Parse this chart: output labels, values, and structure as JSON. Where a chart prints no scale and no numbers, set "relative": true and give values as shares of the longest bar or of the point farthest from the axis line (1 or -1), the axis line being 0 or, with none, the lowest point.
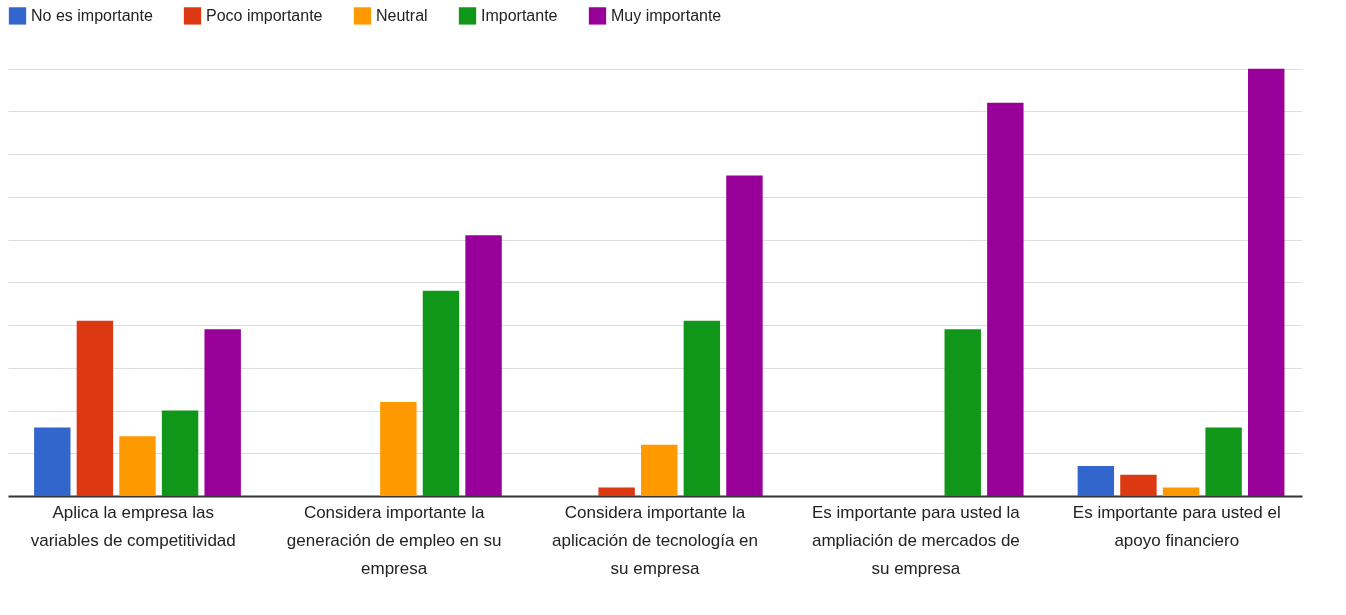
{
  "chart_data": {
    "type": "bar",
    "relative": true,
    "grid": "y",
    "legend": "top left",
    "categories": [
      "Aplica la empresa las variables de competitividad",
      "Considera importante la generación de empleo en su empresa",
      "Considera importante la aplicación de tecnología en su empresa",
      "Es importante para usted la ampliación de mercados de su empresa",
      "Es importante para usted el apoyo financiero"
    ],
    "series": [
      {
        "name": "No es importante",
        "color": "#3366cc",
        "values": [
          0.16,
          0,
          0,
          0,
          0.07
        ]
      },
      {
        "name": "Poco importante",
        "color": "#dc3912",
        "values": [
          0.41,
          0,
          0.02,
          0,
          0.05
        ]
      },
      {
        "name": "Neutral",
        "color": "#ff9900",
        "values": [
          0.14,
          0.22,
          0.12,
          0,
          0.02
        ]
      },
      {
        "name": "Importante",
        "color": "#109618",
        "values": [
          0.2,
          0.48,
          0.41,
          0.39,
          0.16
        ]
      },
      {
        "name": "Muy importante",
        "color": "#990099",
        "values": [
          0.39,
          0.61,
          0.75,
          0.92,
          1
        ]
      }
    ]
  }
}
